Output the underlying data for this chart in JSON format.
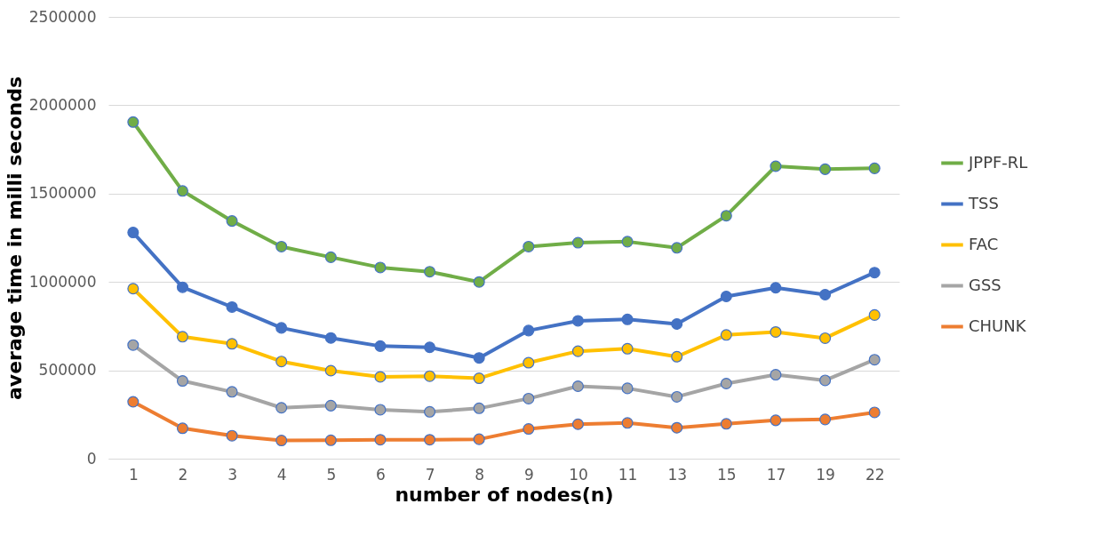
{
  "chart_data": {
    "type": "line",
    "xlabel": "number of nodes(n)",
    "ylabel": "average time in milli seconds",
    "categories": [
      "1",
      "2",
      "3",
      "4",
      "5",
      "6",
      "7",
      "8",
      "9",
      "10",
      "11",
      "13",
      "15",
      "17",
      "19",
      "22"
    ],
    "series": [
      {
        "name": "JPPF-RL",
        "color": "#70ad47",
        "values": [
          1905000,
          1515000,
          1345000,
          1200000,
          1140000,
          1082000,
          1058000,
          1000000,
          1200000,
          1222000,
          1228000,
          1193000,
          1375000,
          1655000,
          1638000,
          1643000
        ]
      },
      {
        "name": "TSS",
        "color": "#4472c4",
        "values": [
          1280000,
          970000,
          858000,
          740000,
          683000,
          637000,
          630000,
          570000,
          725000,
          780000,
          788000,
          762000,
          918000,
          967000,
          928000,
          1053000
        ]
      },
      {
        "name": "FAC",
        "color": "#ffc000",
        "values": [
          962000,
          690000,
          650000,
          550000,
          498000,
          463000,
          467000,
          455000,
          543000,
          608000,
          622000,
          577000,
          700000,
          717000,
          682000,
          813000
        ]
      },
      {
        "name": "GSS",
        "color": "#a5a5a5",
        "values": [
          643000,
          440000,
          378000,
          288000,
          300000,
          277000,
          265000,
          285000,
          340000,
          410000,
          398000,
          350000,
          425000,
          475000,
          443000,
          560000
        ]
      },
      {
        "name": "CHUNK",
        "color": "#ed7d31",
        "values": [
          322000,
          172000,
          130000,
          103000,
          104000,
          107000,
          107000,
          110000,
          168000,
          195000,
          202000,
          175000,
          197000,
          217000,
          222000,
          262000
        ]
      }
    ],
    "ylim": [
      0,
      2500000
    ],
    "yticks": [
      0,
      500000,
      1000000,
      1500000,
      2000000,
      2500000
    ],
    "grid": "y",
    "legend": "right",
    "marker": "circle",
    "line_style": "solid"
  }
}
